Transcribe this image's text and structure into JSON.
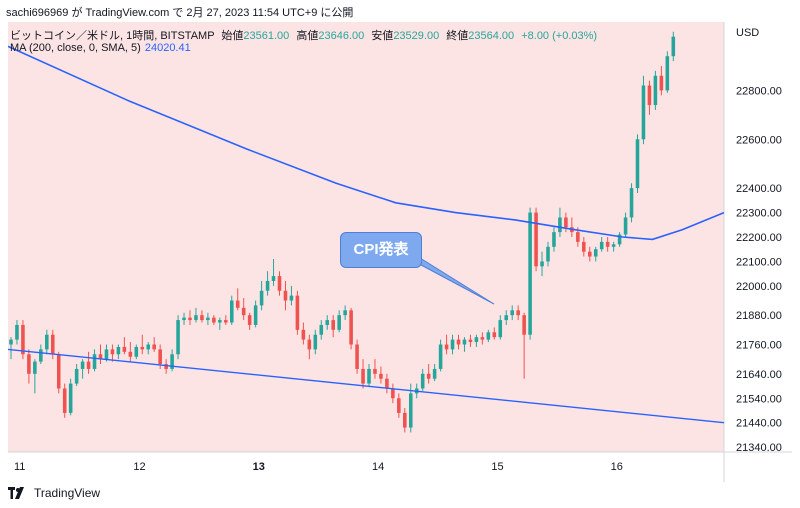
{
  "header": {
    "caption": "sachi696969 が TradingView.com で 2月 27, 2023 11:54 UTC+9 に公開"
  },
  "legend": {
    "symbol": "ビットコイン／米ドル, 1時間, BITSTAMP",
    "open_label": "始値",
    "open_value": "23561.00",
    "high_label": "高値",
    "high_value": "23646.00",
    "low_label": "安値",
    "low_value": "23529.00",
    "close_label": "終値",
    "close_value": "23564.00",
    "change": "+8.00 (+0.03%)",
    "ma_label": "MA (200, close, 0, SMA, 5)",
    "ma_value": "24020.41"
  },
  "callout": {
    "text": "CPI発表"
  },
  "footer": {
    "brand": "TradingView"
  },
  "colors": {
    "background": "#fde4e4",
    "up": "#26a69a",
    "down": "#ef5350",
    "ma_line": "#2962ff",
    "trendline": "#2962ff",
    "callout_fill": "#7fa9ee"
  },
  "chart_data": {
    "type": "candlestick",
    "currency_label": "USD",
    "y_ticks": [
      "22800.00",
      "22600.00",
      "22400.00",
      "22300.00",
      "22200.00",
      "22100.00",
      "22000.00",
      "21880.00",
      "21760.00",
      "21640.00",
      "21540.00",
      "21440.00",
      "21340.00"
    ],
    "x_ticks": [
      "11",
      "12",
      "13",
      "14",
      "15",
      "16"
    ],
    "ylim": [
      21320,
      23080
    ],
    "xlim": [
      0,
      120
    ],
    "candles": [
      [
        0,
        21760,
        21790,
        21700,
        21780
      ],
      [
        1,
        21780,
        21860,
        21760,
        21840
      ],
      [
        2,
        21840,
        21860,
        21700,
        21720
      ],
      [
        3,
        21720,
        21740,
        21600,
        21640
      ],
      [
        4,
        21640,
        21700,
        21560,
        21690
      ],
      [
        5,
        21690,
        21760,
        21680,
        21740
      ],
      [
        6,
        21740,
        21820,
        21720,
        21800
      ],
      [
        7,
        21800,
        21820,
        21700,
        21720
      ],
      [
        8,
        21720,
        21730,
        21560,
        21580
      ],
      [
        9,
        21580,
        21600,
        21460,
        21480
      ],
      [
        10,
        21480,
        21620,
        21470,
        21600
      ],
      [
        11,
        21600,
        21680,
        21590,
        21660
      ],
      [
        12,
        21660,
        21700,
        21620,
        21690
      ],
      [
        13,
        21690,
        21730,
        21640,
        21660
      ],
      [
        14,
        21660,
        21740,
        21650,
        21720
      ],
      [
        15,
        21720,
        21760,
        21680,
        21700
      ],
      [
        16,
        21700,
        21760,
        21690,
        21740
      ],
      [
        17,
        21740,
        21760,
        21690,
        21720
      ],
      [
        18,
        21720,
        21760,
        21700,
        21750
      ],
      [
        19,
        21750,
        21790,
        21720,
        21730
      ],
      [
        20,
        21730,
        21770,
        21690,
        21710
      ],
      [
        21,
        21710,
        21760,
        21700,
        21750
      ],
      [
        22,
        21750,
        21800,
        21720,
        21740
      ],
      [
        23,
        21740,
        21770,
        21720,
        21760
      ],
      [
        24,
        21760,
        21790,
        21730,
        21740
      ],
      [
        25,
        21740,
        21760,
        21660,
        21680
      ],
      [
        26,
        21680,
        21700,
        21640,
        21660
      ],
      [
        27,
        21660,
        21740,
        21650,
        21720
      ],
      [
        28,
        21720,
        21880,
        21700,
        21860
      ],
      [
        29,
        21860,
        21890,
        21840,
        21870
      ],
      [
        30,
        21870,
        21900,
        21840,
        21860
      ],
      [
        31,
        21860,
        21910,
        21850,
        21880
      ],
      [
        32,
        21880,
        21900,
        21850,
        21860
      ],
      [
        33,
        21860,
        21890,
        21840,
        21870
      ],
      [
        34,
        21870,
        21880,
        21840,
        21850
      ],
      [
        35,
        21850,
        21870,
        21820,
        21860
      ],
      [
        36,
        21860,
        21880,
        21840,
        21850
      ],
      [
        37,
        21850,
        21960,
        21840,
        21940
      ],
      [
        38,
        21940,
        21990,
        21900,
        21910
      ],
      [
        39,
        21910,
        21950,
        21860,
        21880
      ],
      [
        40,
        21880,
        21890,
        21820,
        21840
      ],
      [
        41,
        21840,
        21940,
        21830,
        21920
      ],
      [
        42,
        21920,
        22020,
        21900,
        21980
      ],
      [
        43,
        21980,
        22060,
        21960,
        22020
      ],
      [
        44,
        22020,
        22110,
        22000,
        22040
      ],
      [
        45,
        22040,
        22060,
        21960,
        21980
      ],
      [
        46,
        21980,
        22020,
        21900,
        21940
      ],
      [
        47,
        21940,
        22000,
        21920,
        21960
      ],
      [
        48,
        21960,
        21980,
        21800,
        21820
      ],
      [
        49,
        21820,
        21850,
        21760,
        21780
      ],
      [
        50,
        21780,
        21800,
        21700,
        21740
      ],
      [
        51,
        21740,
        21820,
        21720,
        21800
      ],
      [
        52,
        21800,
        21860,
        21780,
        21840
      ],
      [
        53,
        21840,
        21880,
        21820,
        21860
      ],
      [
        54,
        21860,
        21880,
        21790,
        21820
      ],
      [
        55,
        21820,
        21900,
        21810,
        21880
      ],
      [
        56,
        21880,
        21920,
        21860,
        21900
      ],
      [
        57,
        21900,
        21910,
        21740,
        21760
      ],
      [
        58,
        21760,
        21780,
        21640,
        21660
      ],
      [
        59,
        21660,
        21700,
        21580,
        21600
      ],
      [
        60,
        21600,
        21680,
        21590,
        21660
      ],
      [
        61,
        21660,
        21700,
        21620,
        21640
      ],
      [
        62,
        21640,
        21670,
        21600,
        21620
      ],
      [
        63,
        21620,
        21640,
        21560,
        21580
      ],
      [
        64,
        21580,
        21600,
        21520,
        21540
      ],
      [
        65,
        21540,
        21560,
        21460,
        21480
      ],
      [
        66,
        21480,
        21500,
        21400,
        21420
      ],
      [
        67,
        21420,
        21600,
        21400,
        21560
      ],
      [
        68,
        21560,
        21600,
        21540,
        21580
      ],
      [
        69,
        21580,
        21660,
        21570,
        21640
      ],
      [
        70,
        21640,
        21680,
        21600,
        21620
      ],
      [
        71,
        21620,
        21680,
        21610,
        21660
      ],
      [
        72,
        21660,
        21780,
        21650,
        21760
      ],
      [
        73,
        21760,
        21800,
        21720,
        21740
      ],
      [
        74,
        21740,
        21800,
        21720,
        21780
      ],
      [
        75,
        21780,
        21800,
        21740,
        21760
      ],
      [
        76,
        21760,
        21790,
        21730,
        21780
      ],
      [
        77,
        21780,
        21800,
        21750,
        21770
      ],
      [
        78,
        21770,
        21800,
        21750,
        21790
      ],
      [
        79,
        21790,
        21810,
        21760,
        21780
      ],
      [
        80,
        21780,
        21820,
        21770,
        21810
      ],
      [
        81,
        21810,
        21830,
        21780,
        21790
      ],
      [
        82,
        21790,
        21880,
        21780,
        21860
      ],
      [
        83,
        21860,
        21900,
        21840,
        21880
      ],
      [
        84,
        21880,
        21920,
        21860,
        21900
      ],
      [
        85,
        21900,
        21920,
        21860,
        21880
      ],
      [
        86,
        21880,
        21890,
        21620,
        21800
      ],
      [
        87,
        21800,
        22320,
        21780,
        22300
      ],
      [
        88,
        22300,
        22320,
        22060,
        22080
      ],
      [
        89,
        22080,
        22140,
        22040,
        22100
      ],
      [
        90,
        22100,
        22180,
        22080,
        22160
      ],
      [
        91,
        22160,
        22240,
        22140,
        22220
      ],
      [
        92,
        22220,
        22320,
        22200,
        22280
      ],
      [
        93,
        22280,
        22300,
        22220,
        22240
      ],
      [
        94,
        22240,
        22280,
        22200,
        22220
      ],
      [
        95,
        22220,
        22240,
        22160,
        22180
      ],
      [
        96,
        22180,
        22200,
        22120,
        22140
      ],
      [
        97,
        22140,
        22160,
        22100,
        22120
      ],
      [
        98,
        22120,
        22160,
        22100,
        22150
      ],
      [
        99,
        22150,
        22200,
        22140,
        22180
      ],
      [
        100,
        22180,
        22200,
        22140,
        22160
      ],
      [
        101,
        22160,
        22180,
        22140,
        22170
      ],
      [
        102,
        22170,
        22220,
        22160,
        22210
      ],
      [
        103,
        22210,
        22300,
        22200,
        22280
      ],
      [
        104,
        22280,
        22420,
        22260,
        22400
      ],
      [
        105,
        22400,
        22620,
        22380,
        22600
      ],
      [
        106,
        22600,
        22860,
        22580,
        22820
      ],
      [
        107,
        22820,
        22840,
        22700,
        22740
      ],
      [
        108,
        22740,
        22880,
        22720,
        22860
      ],
      [
        109,
        22860,
        22900,
        22780,
        22800
      ],
      [
        110,
        22800,
        22960,
        22790,
        22940
      ],
      [
        111,
        22940,
        23040,
        22920,
        23020
      ]
    ],
    "ma_series": [
      [
        0,
        22980
      ],
      [
        20,
        22760
      ],
      [
        40,
        22560
      ],
      [
        55,
        22420
      ],
      [
        65,
        22340
      ],
      [
        75,
        22300
      ],
      [
        85,
        22270
      ],
      [
        95,
        22230
      ],
      [
        103,
        22200
      ],
      [
        108,
        22190
      ],
      [
        113,
        22230
      ],
      [
        120,
        22300
      ]
    ],
    "trendline": [
      [
        0,
        21740
      ],
      [
        120,
        21440
      ]
    ]
  }
}
